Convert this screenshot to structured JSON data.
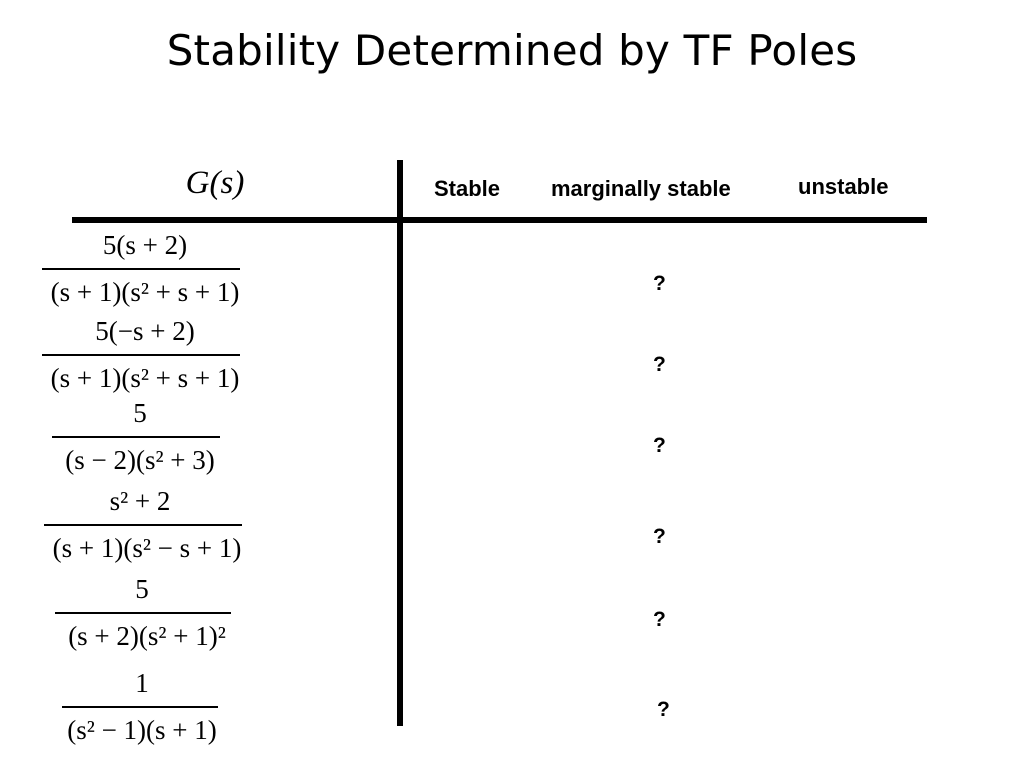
{
  "slide": {
    "title": "Stability Determined by TF Poles"
  },
  "table": {
    "header": {
      "g_symbol": "G",
      "g_arg": "(s)",
      "stable": "Stable",
      "marginal": "marginally stable",
      "unstable": "unstable"
    },
    "rows": [
      {
        "numerator": "5(s + 2)",
        "denominator": "(s + 1)(s² + s + 1)",
        "answer": "?"
      },
      {
        "numerator": "5(−s + 2)",
        "denominator": "(s + 1)(s² + s + 1)",
        "answer": "?"
      },
      {
        "numerator": "5",
        "denominator": "(s − 2)(s² + 3)",
        "answer": "?"
      },
      {
        "numerator": "s² + 2",
        "denominator": "(s + 1)(s² − s + 1)",
        "answer": "?"
      },
      {
        "numerator": "5",
        "denominator": "(s + 2)(s² + 1)²",
        "answer": "?"
      },
      {
        "numerator": "1",
        "denominator": "(s² − 1)(s + 1)",
        "answer": "?"
      }
    ]
  }
}
